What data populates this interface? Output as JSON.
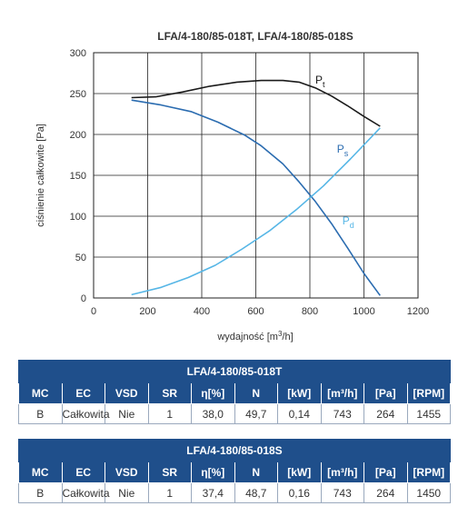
{
  "chart_data": {
    "type": "line",
    "title": "LFA/4-180/85-018T, LFA/4-180/85-018S",
    "xlabel": "wydajność [m³/h]",
    "ylabel": "ciśnienie całkowite [Pa]",
    "xlim": [
      0,
      1200
    ],
    "ylim": [
      0,
      300
    ],
    "xticks": [
      "0",
      "200",
      "400",
      "600",
      "800",
      "1000",
      "1200"
    ],
    "yticks": [
      "0",
      "50",
      "100",
      "150",
      "200",
      "250",
      "300"
    ],
    "grid": true,
    "series": [
      {
        "name": "P",
        "sub": "t",
        "color": "#1a1a1a",
        "x": [
          140,
          230,
          330,
          430,
          530,
          620,
          700,
          760,
          820,
          880,
          940,
          1000,
          1060
        ],
        "y": [
          245,
          246,
          252,
          259,
          264,
          266,
          266,
          264,
          257,
          247,
          235,
          222,
          210
        ]
      },
      {
        "name": "P",
        "sub": "s",
        "color": "#2b6cb0",
        "x": [
          140,
          250,
          360,
          460,
          560,
          620,
          700,
          760,
          820,
          880,
          940,
          1000,
          1060
        ],
        "y": [
          242,
          236,
          228,
          215,
          199,
          186,
          164,
          142,
          118,
          91,
          61,
          30,
          3
        ]
      },
      {
        "name": "P",
        "sub": "d",
        "color": "#56b6e6",
        "x": [
          140,
          250,
          350,
          450,
          550,
          650,
          750,
          850,
          950,
          1060
        ],
        "y": [
          4,
          13,
          25,
          40,
          60,
          82,
          108,
          137,
          170,
          208
        ]
      }
    ]
  },
  "tables": [
    {
      "title": "LFA/4-180/85-018T",
      "headers": [
        "MC",
        "EC",
        "VSD",
        "SR",
        "η[%]",
        "N",
        "[kW]",
        "[m³/h]",
        "[Pa]",
        "[RPM]"
      ],
      "values": [
        "B",
        "Całkowita",
        "Nie",
        "1",
        "38,0",
        "49,7",
        "0,14",
        "743",
        "264",
        "1455"
      ]
    },
    {
      "title": "LFA/4-180/85-018S",
      "headers": [
        "MC",
        "EC",
        "VSD",
        "SR",
        "η[%]",
        "N",
        "[kW]",
        "[m³/h]",
        "[Pa]",
        "[RPM]"
      ],
      "values": [
        "B",
        "Całkowita",
        "Nie",
        "1",
        "37,4",
        "48,7",
        "0,16",
        "743",
        "264",
        "1450"
      ]
    }
  ]
}
